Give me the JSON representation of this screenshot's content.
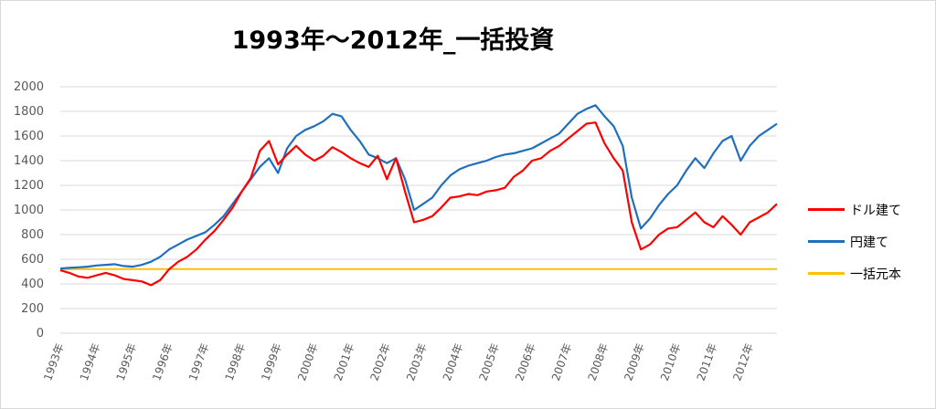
{
  "chart_data": {
    "type": "line",
    "title": "1993年～2012年_一括投資",
    "xlabel": "",
    "ylabel": "",
    "xlim": [
      1993.0,
      2012.75
    ],
    "ylim": [
      0,
      2000
    ],
    "yticks": [
      "0",
      "200",
      "400",
      "600",
      "800",
      "1000",
      "1200",
      "1400",
      "1600",
      "1800",
      "2000"
    ],
    "xtick_labels": [
      "1993年",
      "1994年",
      "1995年",
      "1996年",
      "1997年",
      "1998年",
      "1999年",
      "2000年",
      "2001年",
      "2002年",
      "2003年",
      "2004年",
      "2005年",
      "2006年",
      "2007年",
      "2008年",
      "2009年",
      "2010年",
      "2011年",
      "2012年"
    ],
    "grid": "horizontal",
    "legend_position": "right",
    "series": [
      {
        "name": "ドル建て",
        "color": "#ff0000",
        "x": [
          1993.0,
          1993.25,
          1993.5,
          1993.75,
          1994.0,
          1994.25,
          1994.5,
          1994.75,
          1995.0,
          1995.25,
          1995.5,
          1995.75,
          1996.0,
          1996.25,
          1996.5,
          1996.75,
          1997.0,
          1997.25,
          1997.5,
          1997.75,
          1998.0,
          1998.25,
          1998.5,
          1998.75,
          1999.0,
          1999.25,
          1999.5,
          1999.75,
          2000.0,
          2000.25,
          2000.5,
          2000.75,
          2001.0,
          2001.25,
          2001.5,
          2001.75,
          2002.0,
          2002.25,
          2002.5,
          2002.75,
          2003.0,
          2003.25,
          2003.5,
          2003.75,
          2004.0,
          2004.25,
          2004.5,
          2004.75,
          2005.0,
          2005.25,
          2005.5,
          2005.75,
          2006.0,
          2006.25,
          2006.5,
          2006.75,
          2007.0,
          2007.25,
          2007.5,
          2007.75,
          2008.0,
          2008.25,
          2008.5,
          2008.75,
          2009.0,
          2009.25,
          2009.5,
          2009.75,
          2010.0,
          2010.25,
          2010.5,
          2010.75,
          2011.0,
          2011.25,
          2011.5,
          2011.75,
          2012.0,
          2012.25,
          2012.5,
          2012.75
        ],
        "values": [
          510,
          490,
          460,
          450,
          470,
          490,
          470,
          440,
          430,
          420,
          390,
          430,
          520,
          580,
          620,
          680,
          760,
          830,
          920,
          1020,
          1150,
          1260,
          1480,
          1560,
          1370,
          1450,
          1520,
          1450,
          1400,
          1440,
          1510,
          1470,
          1420,
          1380,
          1350,
          1440,
          1250,
          1420,
          1150,
          900,
          920,
          950,
          1020,
          1100,
          1110,
          1130,
          1120,
          1150,
          1160,
          1180,
          1270,
          1320,
          1400,
          1420,
          1480,
          1520,
          1580,
          1640,
          1700,
          1710,
          1540,
          1420,
          1320,
          900,
          680,
          720,
          800,
          850,
          860,
          920,
          980,
          900,
          860,
          950,
          880,
          800,
          900,
          940,
          980,
          1050
        ]
      },
      {
        "name": "円建て",
        "color": "#1f6fbf",
        "x": [
          1993.0,
          1993.25,
          1993.5,
          1993.75,
          1994.0,
          1994.25,
          1994.5,
          1994.75,
          1995.0,
          1995.25,
          1995.5,
          1995.75,
          1996.0,
          1996.25,
          1996.5,
          1996.75,
          1997.0,
          1997.25,
          1997.5,
          1997.75,
          1998.0,
          1998.25,
          1998.5,
          1998.75,
          1999.0,
          1999.25,
          1999.5,
          1999.75,
          2000.0,
          2000.25,
          2000.5,
          2000.75,
          2001.0,
          2001.25,
          2001.5,
          2001.75,
          2002.0,
          2002.25,
          2002.5,
          2002.75,
          2003.0,
          2003.25,
          2003.5,
          2003.75,
          2004.0,
          2004.25,
          2004.5,
          2004.75,
          2005.0,
          2005.25,
          2005.5,
          2005.75,
          2006.0,
          2006.25,
          2006.5,
          2006.75,
          2007.0,
          2007.25,
          2007.5,
          2007.75,
          2008.0,
          2008.25,
          2008.5,
          2008.75,
          2009.0,
          2009.25,
          2009.5,
          2009.75,
          2010.0,
          2010.25,
          2010.5,
          2010.75,
          2011.0,
          2011.25,
          2011.5,
          2011.75,
          2012.0,
          2012.25,
          2012.5,
          2012.75
        ],
        "values": [
          525,
          530,
          535,
          540,
          550,
          555,
          560,
          545,
          540,
          555,
          580,
          620,
          680,
          720,
          760,
          790,
          820,
          880,
          950,
          1050,
          1150,
          1250,
          1350,
          1420,
          1300,
          1500,
          1600,
          1650,
          1680,
          1720,
          1780,
          1760,
          1650,
          1560,
          1450,
          1420,
          1380,
          1420,
          1250,
          1000,
          1050,
          1100,
          1200,
          1280,
          1330,
          1360,
          1380,
          1400,
          1430,
          1450,
          1460,
          1480,
          1500,
          1540,
          1580,
          1620,
          1700,
          1780,
          1820,
          1850,
          1760,
          1680,
          1520,
          1100,
          850,
          930,
          1040,
          1130,
          1200,
          1320,
          1420,
          1340,
          1460,
          1560,
          1600,
          1400,
          1520,
          1600,
          1650,
          1700
        ]
      },
      {
        "name": "一括元本",
        "color": "#ffc000",
        "x": [
          1993.0,
          2012.75
        ],
        "values": [
          520,
          520
        ]
      }
    ]
  }
}
